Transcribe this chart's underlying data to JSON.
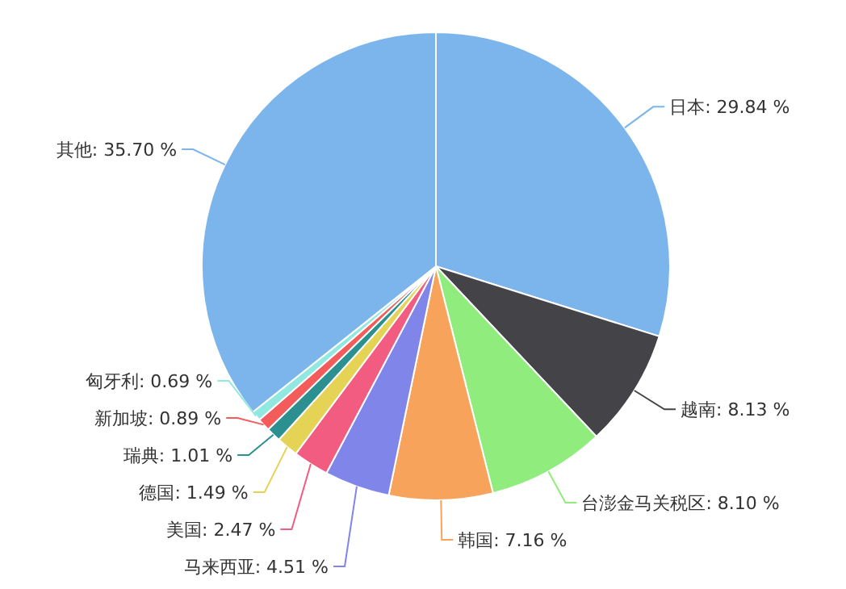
{
  "chart_data": {
    "type": "pie",
    "categories": [
      "日本",
      "越南",
      "台澎金马关税区",
      "韩国",
      "马来西亚",
      "美国",
      "德国",
      "瑞典",
      "新加坡",
      "匈牙利",
      "其他"
    ],
    "values": [
      29.84,
      8.13,
      8.1,
      7.16,
      4.51,
      2.47,
      1.49,
      1.01,
      0.89,
      0.69,
      35.7
    ],
    "value_labels": [
      "29.84 %",
      "8.13 %",
      "8.10 %",
      "7.16 %",
      "4.51 %",
      "2.47 %",
      "1.49 %",
      "1.01 %",
      "0.89 %",
      "0.69 %",
      "35.70 %"
    ],
    "colors": [
      "#7cb5ec",
      "#434348",
      "#90ed7d",
      "#f7a35c",
      "#8085e9",
      "#f15c80",
      "#e4d354",
      "#2b908f",
      "#f45b5b",
      "#91e8e1",
      "#7cb5ec"
    ]
  }
}
